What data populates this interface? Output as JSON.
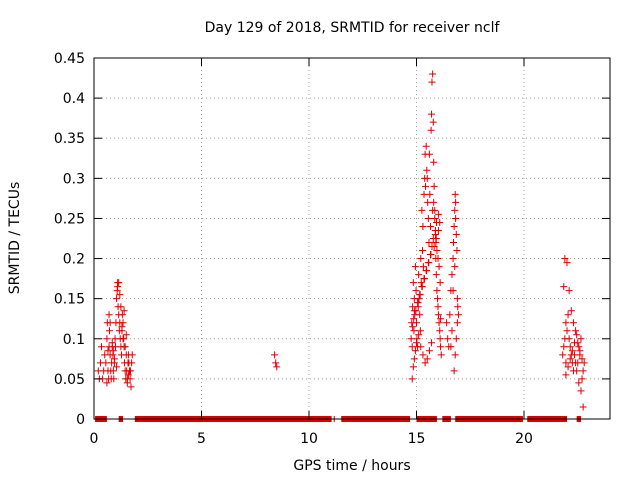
{
  "chart_data": {
    "type": "scatter",
    "title": "Day 129 of 2018, SRMTID for receiver nclf",
    "xlabel": "GPS time / hours",
    "ylabel": "SRMTID / TECUs",
    "xlim": [
      0,
      24
    ],
    "ylim": [
      0,
      0.45
    ],
    "x_ticks": [
      0,
      5,
      10,
      15,
      20
    ],
    "y_ticks": [
      0,
      0.05,
      0.1,
      0.15,
      0.2,
      0.25,
      0.3,
      0.35,
      0.4,
      0.45
    ],
    "x_tick_labels": [
      "0",
      "5",
      "10",
      "15",
      "20"
    ],
    "y_tick_labels": [
      "0",
      "0.05",
      "0.1",
      "0.15",
      "0.2",
      "0.25",
      "0.3",
      "0.35",
      "0.4",
      "0.45"
    ],
    "grid": true,
    "marker": "+",
    "color": "#dd0000",
    "zero_segments": [
      [
        0.05,
        0.6
      ],
      [
        1.15,
        1.35
      ],
      [
        1.9,
        11.05
      ],
      [
        11.15,
        11.2
      ],
      [
        11.5,
        14.7
      ],
      [
        15.0,
        15.95
      ],
      [
        16.2,
        16.6
      ],
      [
        16.8,
        19.95
      ],
      [
        20.15,
        22.0
      ],
      [
        22.45,
        22.65
      ]
    ],
    "series": [
      {
        "x": [
          0.2,
          0.25,
          0.3,
          0.35,
          0.4,
          0.45,
          0.5,
          0.55,
          0.6,
          0.62,
          0.65,
          0.68,
          0.7,
          0.72,
          0.75,
          0.78,
          0.8,
          0.82,
          0.85,
          0.88,
          0.9,
          0.92,
          0.95,
          0.98,
          1.0,
          1.02,
          1.05,
          1.08,
          1.1,
          1.12,
          1.15,
          1.18,
          1.2,
          1.22,
          1.25,
          1.28,
          1.3,
          1.32,
          1.35,
          1.38,
          1.4,
          1.42,
          1.45,
          1.48,
          1.5,
          1.52,
          1.55,
          1.58,
          1.6,
          1.62,
          1.65,
          1.68,
          1.7,
          1.72,
          1.75,
          1.78,
          0.7,
          0.75,
          1.1,
          1.15,
          1.2,
          1.25,
          1.35,
          0.9,
          1.45,
          1.3,
          0.6,
          1.6,
          1.05,
          0.95,
          0.85,
          1.5,
          1.55,
          0.65,
          1.4
        ],
        "y": [
          0.06,
          0.05,
          0.07,
          0.09,
          0.05,
          0.06,
          0.08,
          0.07,
          0.1,
          0.12,
          0.06,
          0.05,
          0.09,
          0.11,
          0.08,
          0.06,
          0.05,
          0.07,
          0.09,
          0.08,
          0.06,
          0.05,
          0.07,
          0.1,
          0.09,
          0.12,
          0.15,
          0.16,
          0.17,
          0.14,
          0.13,
          0.11,
          0.12,
          0.1,
          0.09,
          0.08,
          0.11,
          0.13,
          0.12,
          0.1,
          0.09,
          0.07,
          0.06,
          0.05,
          0.08,
          0.06,
          0.05,
          0.07,
          0.08,
          0.07,
          0.06,
          0.05,
          0.06,
          0.04,
          0.07,
          0.08,
          0.13,
          0.12,
          0.165,
          0.17,
          0.155,
          0.14,
          0.1,
          0.085,
          0.09,
          0.115,
          0.045,
          0.055,
          0.065,
          0.075,
          0.095,
          0.105,
          0.045,
          0.085,
          0.135
        ]
      },
      {
        "x": [
          8.4,
          8.45,
          8.5
        ],
        "y": [
          0.08,
          0.07,
          0.065
        ]
      },
      {
        "x": [
          14.75,
          14.78,
          14.8,
          14.82,
          14.85,
          14.88,
          14.9,
          14.92,
          14.95,
          14.98,
          15.0,
          15.02,
          15.05,
          15.08,
          15.1,
          15.12,
          15.15,
          15.18,
          15.2,
          15.22,
          15.25,
          15.28,
          15.3,
          15.32,
          15.35,
          15.38,
          15.4,
          15.42,
          15.45,
          15.48,
          15.5,
          15.52,
          15.55,
          15.58,
          15.6,
          15.62,
          15.65,
          15.68,
          15.7,
          15.72,
          15.75,
          15.78,
          15.8,
          15.82,
          15.85,
          15.88,
          15.9,
          15.92,
          15.95,
          15.98,
          16.0,
          16.02,
          16.05,
          16.08,
          16.1,
          16.12,
          16.15,
          14.8,
          14.85,
          14.9,
          14.95,
          15.0,
          15.1,
          15.2,
          15.3,
          15.4,
          15.5,
          15.6,
          15.7,
          15.75,
          15.8,
          15.85,
          15.9,
          15.95,
          16.0,
          16.05,
          16.1,
          14.9,
          15.05,
          15.15,
          15.25,
          15.35,
          15.45,
          15.55,
          15.65,
          15.72,
          15.78,
          15.88,
          15.93,
          16.03,
          16.08,
          14.82,
          14.87,
          14.97,
          15.07,
          15.17,
          15.27,
          15.37,
          15.47,
          15.57,
          15.67,
          15.82,
          15.92,
          16.02,
          16.12
        ],
        "y": [
          0.1,
          0.12,
          0.09,
          0.14,
          0.17,
          0.11,
          0.15,
          0.13,
          0.19,
          0.16,
          0.12,
          0.1,
          0.09,
          0.14,
          0.18,
          0.15,
          0.13,
          0.11,
          0.2,
          0.17,
          0.26,
          0.21,
          0.24,
          0.19,
          0.28,
          0.3,
          0.33,
          0.29,
          0.34,
          0.31,
          0.3,
          0.27,
          0.25,
          0.22,
          0.33,
          0.28,
          0.24,
          0.36,
          0.38,
          0.42,
          0.43,
          0.37,
          0.32,
          0.29,
          0.26,
          0.23,
          0.2,
          0.18,
          0.16,
          0.15,
          0.14,
          0.13,
          0.12,
          0.11,
          0.1,
          0.09,
          0.08,
          0.05,
          0.065,
          0.075,
          0.085,
          0.095,
          0.105,
          0.09,
          0.08,
          0.07,
          0.075,
          0.085,
          0.095,
          0.26,
          0.27,
          0.25,
          0.22,
          0.21,
          0.2,
          0.19,
          0.17,
          0.135,
          0.145,
          0.155,
          0.165,
          0.175,
          0.185,
          0.195,
          0.205,
          0.215,
          0.225,
          0.235,
          0.245,
          0.255,
          0.245,
          0.115,
          0.125,
          0.135,
          0.145,
          0.155,
          0.165,
          0.175,
          0.185,
          0.195,
          0.205,
          0.215,
          0.225,
          0.235,
          0.125
        ]
      },
      {
        "x": [
          16.4,
          16.45,
          16.5,
          16.55,
          16.6,
          16.65,
          16.7,
          16.72,
          16.75,
          16.78,
          16.8,
          16.82,
          16.85,
          16.88,
          16.9,
          16.92,
          16.75,
          16.8,
          16.85,
          16.9,
          16.7,
          16.95,
          16.6,
          16.65,
          16.78,
          16.82
        ],
        "y": [
          0.12,
          0.1,
          0.09,
          0.13,
          0.16,
          0.18,
          0.2,
          0.22,
          0.24,
          0.26,
          0.28,
          0.25,
          0.23,
          0.21,
          0.15,
          0.14,
          0.06,
          0.08,
          0.1,
          0.12,
          0.16,
          0.13,
          0.09,
          0.11,
          0.19,
          0.27
        ]
      },
      {
        "x": [
          21.8,
          21.85,
          21.9,
          21.95,
          22.0,
          22.05,
          22.1,
          22.15,
          22.2,
          22.25,
          22.3,
          22.35,
          22.4,
          22.45,
          22.5,
          22.55,
          22.6,
          22.65,
          22.7,
          22.75,
          22.8,
          21.9,
          22.0,
          22.1,
          22.2,
          22.3,
          22.4,
          22.5,
          22.6,
          22.7,
          21.95,
          22.05,
          22.15,
          22.25,
          22.35,
          22.45,
          22.55,
          22.65,
          22.75,
          21.85,
          21.95
        ],
        "y": [
          0.08,
          0.09,
          0.1,
          0.12,
          0.11,
          0.13,
          0.1,
          0.09,
          0.08,
          0.07,
          0.06,
          0.08,
          0.07,
          0.06,
          0.07,
          0.09,
          0.08,
          0.1,
          0.05,
          0.06,
          0.07,
          0.2,
          0.195,
          0.16,
          0.135,
          0.12,
          0.11,
          0.095,
          0.085,
          0.075,
          0.07,
          0.065,
          0.075,
          0.085,
          0.095,
          0.105,
          0.045,
          0.035,
          0.015,
          0.165,
          0.055
        ]
      }
    ]
  }
}
